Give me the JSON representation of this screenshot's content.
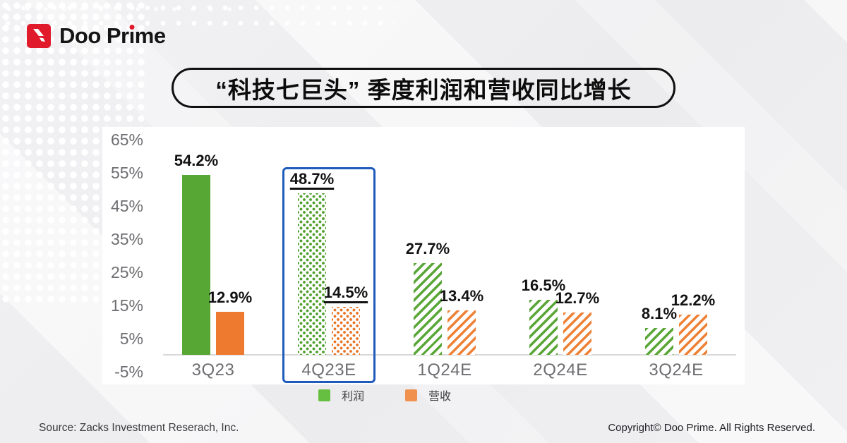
{
  "brand": {
    "pre": "Doo Pr",
    "i": "ı",
    "post": "me"
  },
  "icons": {
    "logo_mark": "doo-prime-arrow-mark"
  },
  "chart_data": {
    "type": "bar",
    "title": "“科技七巨头” 季度利润和营收同比增长",
    "categories": [
      "3Q23",
      "4Q23E",
      "1Q24E",
      "2Q24E",
      "3Q24E"
    ],
    "series": [
      {
        "name": "利润",
        "color": "#56a733",
        "values": [
          54.2,
          48.7,
          27.7,
          16.5,
          8.1
        ]
      },
      {
        "name": "营收",
        "color": "#ed7a2e",
        "values": [
          12.9,
          14.5,
          13.4,
          12.7,
          12.2
        ]
      }
    ],
    "value_suffix": "%",
    "y_ticks": [
      65,
      55,
      45,
      35,
      25,
      15,
      5,
      -5
    ],
    "ylim": [
      -5,
      65
    ],
    "grid": false,
    "pattern_by_category": [
      "solid",
      "dots-pat",
      "stripes",
      "stripes",
      "stripes"
    ],
    "highlight_category": "4Q23E",
    "highlight_color": "#1e5bbb",
    "axis_color": "#d8d8d8",
    "legend_position": "bottom",
    "legend": [
      {
        "label": "利润",
        "color": "#67bf41"
      },
      {
        "label": "营收",
        "color": "#f0924d"
      }
    ]
  },
  "footer": {
    "source": "Source: Zacks Investment Reserach, Inc.",
    "copyright": "Copyright© Doo Prime. All Rights Reserved."
  }
}
